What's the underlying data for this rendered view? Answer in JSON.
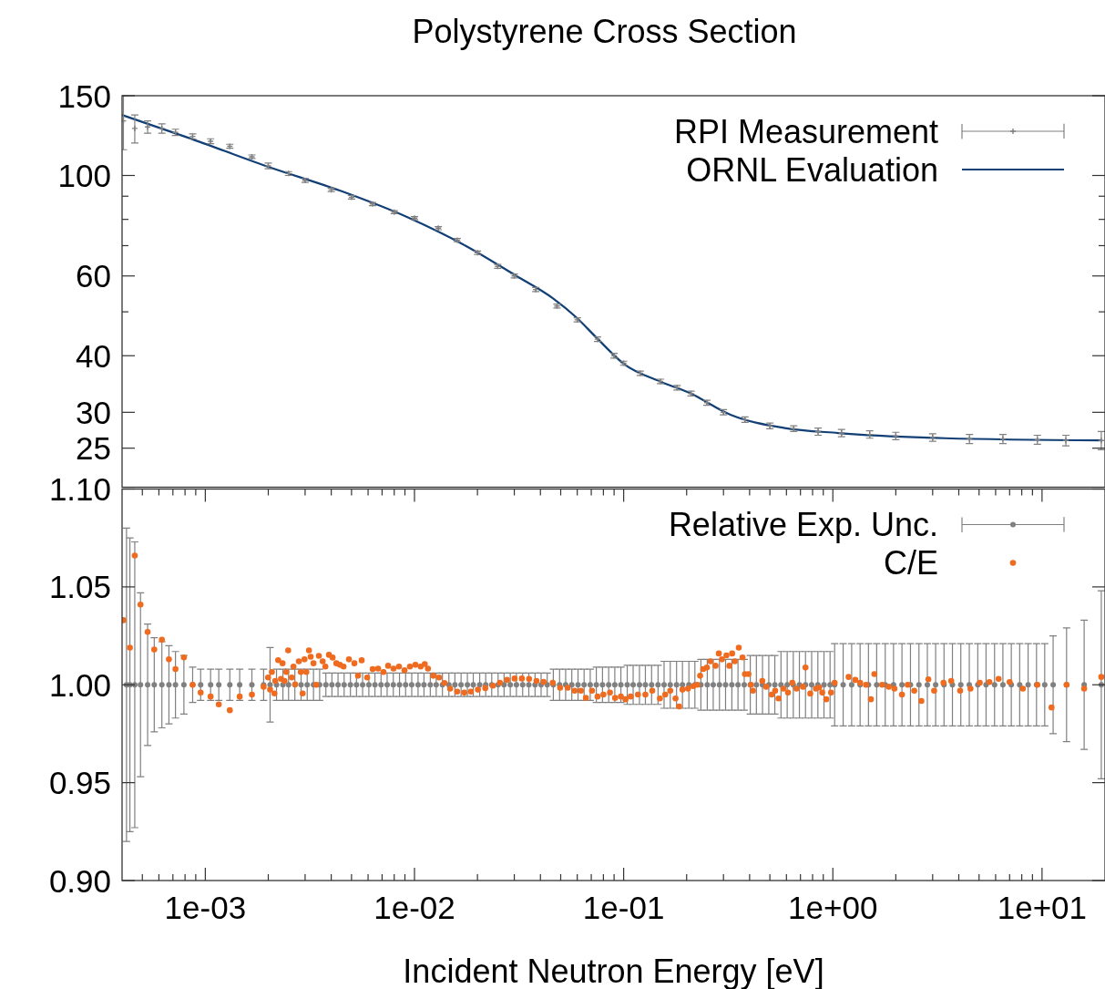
{
  "chart_data": [
    {
      "type": "scatter",
      "title": "Polystyrene Cross Section",
      "log": "xy",
      "xlim": [
        0.0004,
        20
      ],
      "ylim": [
        20.5,
        150
      ],
      "tick_labels": "y",
      "legend": "top right",
      "yticks": [
        25,
        30,
        40,
        {
          "value": 50,
          "label": null
        },
        60,
        {
          "value": 70,
          "label": null
        },
        {
          "value": 80,
          "label": null
        },
        {
          "value": 90,
          "label": null
        },
        100,
        150
      ],
      "series": [
        {
          "name": "RPI Measurement",
          "marker": "cross",
          "color": "#808080",
          "x": [
            0.000406,
            0.00046,
            0.00053,
            0.00062,
            0.00072,
            0.00087,
            0.00106,
            0.00131,
            0.00167,
            0.002,
            0.0025,
            0.003,
            0.004,
            0.005,
            0.0063,
            0.008,
            0.01,
            0.013,
            0.016,
            0.02,
            0.025,
            0.03,
            0.038,
            0.048,
            0.06,
            0.075,
            0.09,
            0.1,
            0.12,
            0.15,
            0.18,
            0.21,
            0.25,
            0.3,
            0.38,
            0.5,
            0.65,
            0.85,
            1.1,
            1.5,
            2,
            3,
            4.5,
            6.5,
            9.5,
            13,
            19.2
          ],
          "values": [
            132,
            127,
            128,
            127,
            124.5,
            122,
            119,
            116,
            110,
            105,
            101,
            97.5,
            93,
            89.5,
            86.5,
            83,
            80.5,
            76.5,
            72,
            67.5,
            63,
            60,
            56,
            51.5,
            48,
            43.5,
            40,
            38.5,
            36.6,
            35.1,
            34,
            33,
            31.5,
            30,
            28.9,
            28,
            27.6,
            27.2,
            27,
            26.8,
            26.6,
            26.4,
            26.2,
            26.2,
            26.1,
            26,
            26
          ],
          "errors": [
            18,
            9,
            4,
            3,
            2,
            1.5,
            1.5,
            1.2,
            1,
            1.5,
            1,
            1,
            0.8,
            0.8,
            0.7,
            0.6,
            0.6,
            0.6,
            0.6,
            0.6,
            0.6,
            0.6,
            0.6,
            0.5,
            0.5,
            0.5,
            0.5,
            0.4,
            0.4,
            0.4,
            0.4,
            0.4,
            0.4,
            0.4,
            0.4,
            0.4,
            0.4,
            0.5,
            0.5,
            0.5,
            0.5,
            0.5,
            0.6,
            0.6,
            0.6,
            0.7,
            1.2
          ]
        },
        {
          "name": "ORNL Evaluation",
          "type": "line",
          "color": "#123f75",
          "x": [
            0.0004,
            0.000835,
            0.00194,
            0.00458,
            0.0092,
            0.0175,
            0.0307,
            0.0458,
            0.0594,
            0.075,
            0.1,
            0.149,
            0.204,
            0.326,
            0.589,
            1.06,
            3.43,
            19.4
          ],
          "values": [
            136,
            121,
            105,
            92,
            81,
            70,
            60,
            53.6,
            48.6,
            43.6,
            38.4,
            35.1,
            33.2,
            29.6,
            27.7,
            27,
            26.3,
            26
          ]
        }
      ]
    },
    {
      "type": "scatter",
      "xlabel": "Incident Neutron Energy [eV]",
      "log": "x",
      "xlim": [
        0.0004,
        20
      ],
      "ylim": [
        0.9,
        1.1
      ],
      "legend": "top right",
      "xticks": [
        {
          "value": 0.0005,
          "label": null
        },
        {
          "value": 0.0006,
          "label": null
        },
        {
          "value": 0.0007,
          "label": null
        },
        {
          "value": 0.0008,
          "label": null
        },
        {
          "value": 0.0009,
          "label": null
        },
        {
          "value": 0.001,
          "label": "1e-03"
        },
        {
          "value": 0.002,
          "label": null
        },
        {
          "value": 0.003,
          "label": null
        },
        {
          "value": 0.004,
          "label": null
        },
        {
          "value": 0.005,
          "label": null
        },
        {
          "value": 0.006,
          "label": null
        },
        {
          "value": 0.007,
          "label": null
        },
        {
          "value": 0.008,
          "label": null
        },
        {
          "value": 0.009,
          "label": null
        },
        {
          "value": 0.01,
          "label": "1e-02"
        },
        {
          "value": 0.02,
          "label": null
        },
        {
          "value": 0.03,
          "label": null
        },
        {
          "value": 0.04,
          "label": null
        },
        {
          "value": 0.05,
          "label": null
        },
        {
          "value": 0.06,
          "label": null
        },
        {
          "value": 0.07,
          "label": null
        },
        {
          "value": 0.08,
          "label": null
        },
        {
          "value": 0.09,
          "label": null
        },
        {
          "value": 0.1,
          "label": "1e-01"
        },
        {
          "value": 0.2,
          "label": null
        },
        {
          "value": 0.3,
          "label": null
        },
        {
          "value": 0.4,
          "label": null
        },
        {
          "value": 0.5,
          "label": null
        },
        {
          "value": 0.6,
          "label": null
        },
        {
          "value": 0.7,
          "label": null
        },
        {
          "value": 0.8,
          "label": null
        },
        {
          "value": 0.9,
          "label": null
        },
        {
          "value": 1,
          "label": "1e+00"
        },
        {
          "value": 2,
          "label": null
        },
        {
          "value": 3,
          "label": null
        },
        {
          "value": 4,
          "label": null
        },
        {
          "value": 5,
          "label": null
        },
        {
          "value": 6,
          "label": null
        },
        {
          "value": 7,
          "label": null
        },
        {
          "value": 8,
          "label": null
        },
        {
          "value": 9,
          "label": null
        },
        {
          "value": 10,
          "label": "1e+01"
        }
      ],
      "yticks": [
        {
          "value": 0.9,
          "label": "0.90"
        },
        0.95,
        {
          "value": 1,
          "label": "1.00"
        },
        1.05,
        {
          "value": 1.1,
          "label": "1.10"
        }
      ],
      "series": [
        {
          "name": "Relative Exp. Unc.",
          "marker": "circle",
          "color": "#808080",
          "x": [
            0.00042,
            0.000436,
            0.00046,
            0.00049,
            0.00053,
            0.00057,
            0.00062,
            0.00067,
            0.00072,
            0.00079,
            0.00087,
            0.00095,
            0.00106,
            0.00116,
            0.00131,
            0.00146,
            0.00167,
            0.0019,
            0.00204,
            0.00219,
            0.00235,
            0.0025,
            0.00268,
            0.00287,
            0.00307,
            0.00329,
            0.00352,
            0.00377,
            0.00403,
            0.00431,
            0.00461,
            0.00494,
            0.00528,
            0.00565,
            0.00605,
            0.00647,
            0.00692,
            0.0074,
            0.00792,
            0.00848,
            0.00907,
            0.0097,
            0.0104,
            0.0111,
            0.0119,
            0.0127,
            0.0136,
            0.0146,
            0.0156,
            0.0167,
            0.0179,
            0.0191,
            0.0205,
            0.0219,
            0.0234,
            0.0251,
            0.0268,
            0.0287,
            0.0307,
            0.0329,
            0.0352,
            0.0377,
            0.0403,
            0.0431,
            0.0461,
            0.0494,
            0.0528,
            0.0565,
            0.0605,
            0.0647,
            0.0692,
            0.074,
            0.0792,
            0.0848,
            0.0907,
            0.097,
            0.104,
            0.111,
            0.119,
            0.127,
            0.136,
            0.146,
            0.156,
            0.167,
            0.179,
            0.191,
            0.205,
            0.219,
            0.234,
            0.251,
            0.268,
            0.287,
            0.307,
            0.329,
            0.352,
            0.377,
            0.403,
            0.431,
            0.461,
            0.494,
            0.528,
            0.565,
            0.605,
            0.647,
            0.692,
            0.74,
            0.792,
            0.848,
            0.907,
            0.97,
            1.02,
            1.12,
            1.23,
            1.35,
            1.48,
            1.62,
            1.78,
            1.95,
            2.14,
            2.35,
            2.58,
            2.83,
            3.1,
            3.4,
            3.73,
            4.09,
            4.49,
            4.93,
            5.4,
            5.93,
            6.5,
            7.13,
            7.82,
            8.58,
            9.41,
            10.3,
            11.3,
            13.1,
            15.9,
            19.2
          ],
          "values": [
            1,
            1,
            1,
            1,
            1,
            1,
            1,
            1,
            1,
            1,
            1,
            1,
            1,
            1,
            1,
            1,
            1,
            1,
            1,
            1,
            1,
            1,
            1,
            1,
            1,
            1,
            1,
            1,
            1,
            1,
            1,
            1,
            1,
            1,
            1,
            1,
            1,
            1,
            1,
            1,
            1,
            1,
            1,
            1,
            1,
            1,
            1,
            1,
            1,
            1,
            1,
            1,
            1,
            1,
            1,
            1,
            1,
            1,
            1,
            1,
            1,
            1,
            1,
            1,
            1,
            1,
            1,
            1,
            1,
            1,
            1,
            1,
            1,
            1,
            1,
            1,
            1,
            1,
            1,
            1,
            1,
            1,
            1,
            1,
            1,
            1,
            1,
            1,
            1,
            1,
            1,
            1,
            1,
            1,
            1,
            1,
            1,
            1,
            1,
            1,
            1,
            1,
            1,
            1,
            1,
            1,
            1,
            1,
            1,
            1,
            1,
            1,
            1,
            1,
            1,
            1,
            1,
            1,
            1,
            1,
            1,
            1,
            1,
            1,
            1,
            1,
            1,
            1,
            1,
            1,
            1,
            1,
            1,
            1,
            1,
            1,
            1,
            1,
            1,
            1
          ],
          "errors": [
            0.08,
            0.075,
            0.073,
            0.047,
            0.031,
            0.024,
            0.022,
            0.02,
            0.017,
            0.015,
            0.009,
            0.008,
            0.008,
            0.008,
            0.008,
            0.008,
            0.008,
            0.008,
            0.019,
            0.008,
            0.008,
            0.008,
            0.008,
            0.008,
            0.008,
            0.008,
            0.008,
            0.006,
            0.006,
            0.006,
            0.006,
            0.006,
            0.006,
            0.006,
            0.006,
            0.006,
            0.006,
            0.006,
            0.006,
            0.006,
            0.006,
            0.006,
            0.006,
            0.006,
            0.006,
            0.006,
            0.006,
            0.006,
            0.006,
            0.006,
            0.006,
            0.006,
            0.006,
            0.006,
            0.006,
            0.006,
            0.006,
            0.006,
            0.006,
            0.006,
            0.006,
            0.006,
            0.006,
            0.006,
            0.008,
            0.008,
            0.008,
            0.008,
            0.008,
            0.008,
            0.008,
            0.009,
            0.009,
            0.009,
            0.009,
            0.009,
            0.01,
            0.01,
            0.01,
            0.01,
            0.01,
            0.01,
            0.012,
            0.012,
            0.012,
            0.012,
            0.012,
            0.012,
            0.013,
            0.013,
            0.013,
            0.013,
            0.013,
            0.013,
            0.013,
            0.013,
            0.015,
            0.015,
            0.015,
            0.015,
            0.015,
            0.017,
            0.017,
            0.017,
            0.017,
            0.017,
            0.017,
            0.017,
            0.017,
            0.017,
            0.021,
            0.021,
            0.021,
            0.021,
            0.021,
            0.021,
            0.021,
            0.021,
            0.021,
            0.021,
            0.021,
            0.021,
            0.021,
            0.021,
            0.021,
            0.021,
            0.021,
            0.021,
            0.021,
            0.021,
            0.021,
            0.021,
            0.021,
            0.021,
            0.021,
            0.021,
            0.025,
            0.029,
            0.033,
            0.048
          ]
        },
        {
          "name": "C/E",
          "marker": "circle",
          "color": "#ee6b1f",
          "x": [
            0.000406,
            0.000436,
            0.00046,
            0.00049,
            0.00053,
            0.00057,
            0.00062,
            0.00067,
            0.00072,
            0.00079,
            0.00087,
            0.00095,
            0.00106,
            0.00116,
            0.00131,
            0.00146,
            0.00167,
            0.0019,
            0.001995,
            0.00204,
            0.00208,
            0.00214,
            0.00216,
            0.00223,
            0.0023,
            0.00234,
            0.00239,
            0.00244,
            0.00249,
            0.00259,
            0.00264,
            0.00269,
            0.0028,
            0.00286,
            0.00292,
            0.00298,
            0.00304,
            0.00313,
            0.00319,
            0.00329,
            0.00339,
            0.00349,
            0.00364,
            0.00375,
            0.0039,
            0.00406,
            0.00423,
            0.0044,
            0.00458,
            0.00486,
            0.00516,
            0.00537,
            0.00559,
            0.00594,
            0.00631,
            0.0067,
            0.00711,
            0.00748,
            0.00794,
            0.00843,
            0.00896,
            0.00951,
            0.0101,
            0.0107,
            0.0112,
            0.0116,
            0.0123,
            0.0131,
            0.0139,
            0.0148,
            0.016,
            0.0173,
            0.0186,
            0.0201,
            0.0218,
            0.0237,
            0.0256,
            0.0277,
            0.0301,
            0.0326,
            0.0353,
            0.0383,
            0.0414,
            0.0458,
            0.0497,
            0.054,
            0.0583,
            0.0625,
            0.066,
            0.0706,
            0.075,
            0.08,
            0.086,
            0.091,
            0.097,
            0.102,
            0.108,
            0.117,
            0.127,
            0.137,
            0.149,
            0.158,
            0.167,
            0.177,
            0.184,
            0.191,
            0.203,
            0.215,
            0.225,
            0.232,
            0.24,
            0.25,
            0.26,
            0.275,
            0.285,
            0.295,
            0.31,
            0.32,
            0.33,
            0.34,
            0.355,
            0.37,
            0.38,
            0.395,
            0.406,
            0.415,
            0.46,
            0.48,
            0.51,
            0.53,
            0.55,
            0.58,
            0.61,
            0.64,
            0.67,
            0.72,
            0.74,
            0.78,
            0.83,
            0.86,
            0.89,
            0.93,
            0.98,
            1.02,
            1.19,
            1.28,
            1.35,
            1.44,
            1.52,
            1.58,
            1.72,
            1.85,
            1.97,
            2.14,
            2.28,
            2.45,
            2.65,
            2.86,
            3.05,
            3.38,
            3.68,
            4.06,
            4.55,
            5.04,
            5.6,
            6.2,
            7.0,
            8.1,
            9.5,
            11.1,
            13.1,
            15.9,
            19.2
          ],
          "values": [
            1.033,
            1.019,
            1.066,
            1.041,
            1.027,
            1.018,
            1.023,
            1.013,
            1.008,
            1.014,
            1.0,
            0.996,
            0.994,
            0.99,
            0.987,
            0.994,
            0.995,
            0.999,
            1.0037,
            0.9975,
            1.0065,
            0.9956,
            1.002,
            1.0126,
            1.003,
            1.011,
            1.002,
            1.0065,
            1.0176,
            1.0037,
            1.0093,
            1.0002,
            1.012,
            1.0065,
            0.9956,
            1.013,
            1.0065,
            1.0176,
            1.0143,
            1.011,
            1.0,
            1.0148,
            1.012,
            1.0093,
            1.0153,
            1.0139,
            1.011,
            1.0102,
            1.0093,
            1.013,
            1.011,
            1.0046,
            1.0125,
            1.0037,
            1.008,
            1.0083,
            1.0065,
            1.0097,
            1.0083,
            1.0093,
            1.0074,
            1.0093,
            1.0102,
            1.0093,
            1.0106,
            1.0083,
            1.0046,
            1.0037,
            1.0009,
            0.998,
            0.9965,
            0.996,
            0.9965,
            0.9975,
            0.9983,
            0.9995,
            1.001,
            1.0025,
            1.0032,
            1.0032,
            1.003,
            1.002,
            1.0015,
            1.001,
            0.9985,
            0.9985,
            0.997,
            0.997,
            0.9933,
            0.997,
            0.994,
            0.995,
            0.996,
            0.9933,
            0.994,
            0.9926,
            0.994,
            0.995,
            0.995,
            0.997,
            0.993,
            0.995,
            0.997,
            0.993,
            0.9889,
            0.9975,
            0.998,
            0.9993,
            1.0,
            1.0046,
            1.008,
            1.0088,
            1.012,
            1.0097,
            1.016,
            1.013,
            1.015,
            1.0097,
            1.016,
            1.012,
            1.019,
            1.014,
            1.0055,
            1.0055,
            1.0,
            0.997,
            1.002,
            0.999,
            0.995,
            0.997,
            0.993,
            0.998,
            0.996,
            1.001,
            0.998,
            0.999,
            1.0088,
            0.9955,
            0.998,
            0.9986,
            0.996,
            0.9926,
            0.996,
            1.001,
            1.004,
            1.0025,
            1.001,
            1.0,
            0.9926,
            1.0055,
            1.0,
            0.999,
            0.998,
            0.995,
            1.0,
            0.997,
            0.9917,
            1.0028,
            0.997,
            1.001,
            1.002,
            0.997,
            0.998,
            1.001,
            1.0014,
            1.003,
            1.0014,
            0.998,
            1.0,
            0.9884,
            1.0,
            0.998,
            1.004
          ]
        }
      ]
    }
  ]
}
